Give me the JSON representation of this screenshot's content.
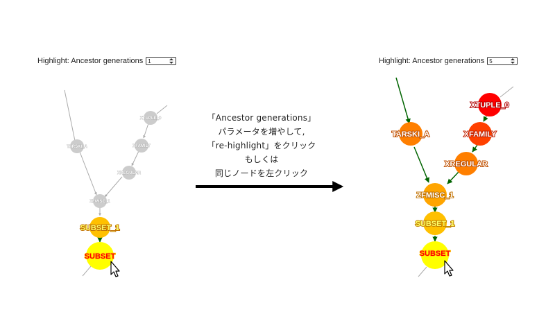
{
  "left_panel": {
    "highlight_label": "Highlight: Ancestor generations",
    "generations_value": "1",
    "nodes": {
      "subset": "SUBSET",
      "subset_1": "SUBSET_1",
      "zfmisc_1": "ZFMISC_1",
      "tarski_a": "TARSKI_A",
      "xregular": "XREGULAR",
      "xfamily": "XFAMILY",
      "xtuple_0": "XTUPLE_0"
    }
  },
  "right_panel": {
    "highlight_label": "Highlight: Ancestor generations",
    "generations_value": "5",
    "nodes": {
      "subset": "SUBSET",
      "subset_1": "SUBSET_1",
      "zfmisc_1": "ZFMISC_1",
      "tarski_a": "TARSKI_A",
      "xregular": "XREGULAR",
      "xfamily": "XFAMILY",
      "xtuple_0": "XTUPLE_0"
    }
  },
  "instructions": {
    "line1": "「Ancestor generations」",
    "line2": "パラメータを増やして,",
    "line3": "「re-highlight」をクリック",
    "line4": "もしくは",
    "line5": "同じノードを左クリック"
  },
  "colors": {
    "gen0": "#ffff00",
    "gen1": "#ffc000",
    "gen2": "#ffa500",
    "gen3": "#ff7f00",
    "gen4": "#ff4000",
    "gen5": "#ff0000",
    "dim_node": "#cccccc",
    "highlight_edge": "#006400",
    "dim_edge": "#aaaaaa",
    "label_red": "#ff0000"
  }
}
